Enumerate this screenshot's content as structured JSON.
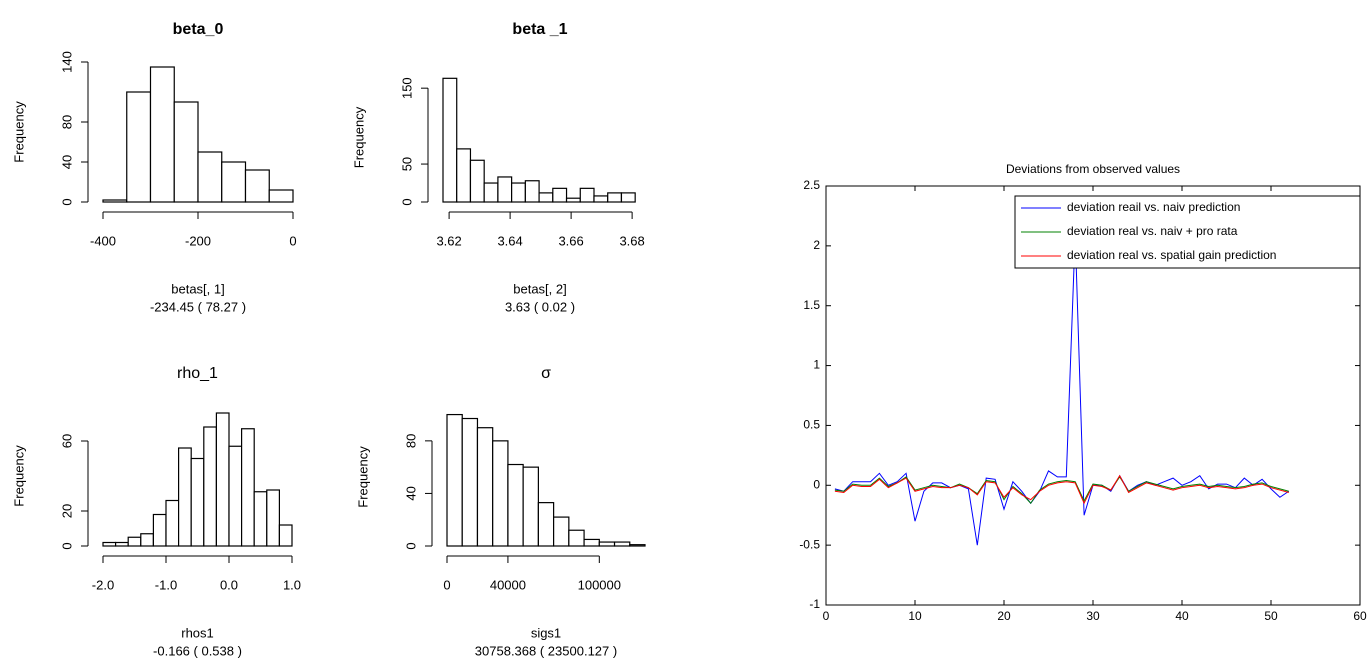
{
  "chart_data": [
    {
      "type": "histogram",
      "title": "beta_0",
      "ylabel": "Frequency",
      "xlabel": "betas[, 1]",
      "note": "-234.45 ( 78.27 )",
      "bins": [
        -400,
        -350,
        -300,
        -250,
        -200,
        -150,
        -100,
        -50,
        0
      ],
      "values": [
        2,
        110,
        135,
        100,
        50,
        40,
        32,
        12
      ],
      "color": "#ffffff",
      "xlim": [
        -400,
        0
      ],
      "xticks": [
        -400,
        -200,
        0
      ],
      "ylim": [
        0,
        140
      ],
      "yticks": [
        0,
        40,
        80,
        140
      ]
    },
    {
      "type": "histogram",
      "title": "beta _1",
      "ylabel": "Frequency",
      "xlabel": "betas[, 2]",
      "note": "3.63 ( 0.02 )",
      "bins": [
        3.618,
        3.6225,
        3.627,
        3.6315,
        3.636,
        3.6405,
        3.645,
        3.6495,
        3.654,
        3.6585,
        3.663,
        3.6675,
        3.672,
        3.6765,
        3.681
      ],
      "values": [
        163,
        70,
        55,
        25,
        33,
        25,
        28,
        12,
        18,
        5,
        18,
        8,
        12,
        12
      ],
      "color": "#ffffff",
      "xlim": [
        3.618,
        3.6816
      ],
      "xticks": [
        3.62,
        3.64,
        3.66,
        3.68
      ],
      "ylim": [
        0,
        170
      ],
      "yticks": [
        0,
        50,
        150
      ]
    },
    {
      "type": "histogram",
      "title": "rho_1",
      "ylabel": "Frequency",
      "xlabel": "rhos1",
      "note": "-0.166 ( 0.538 )",
      "bins": [
        -2,
        -1.8,
        -1.6,
        -1.4,
        -1.2,
        -1,
        -0.8,
        -0.6,
        -0.4,
        -0.2,
        0,
        0.2,
        0.4,
        0.6,
        0.8,
        1
      ],
      "values": [
        2,
        2,
        5,
        7,
        18,
        26,
        56,
        50,
        68,
        76,
        57,
        67,
        31,
        32,
        12
      ],
      "color": "#ffffff",
      "xlim": [
        -2,
        1
      ],
      "xticks": [
        {
          "value": -2,
          "label": "-2.0"
        },
        {
          "value": -1,
          "label": "-1.0"
        },
        {
          "value": 0,
          "label": "0.0"
        },
        {
          "value": 1,
          "label": "1.0"
        }
      ],
      "ylim": [
        0,
        80
      ],
      "yticks": [
        0,
        20,
        60
      ]
    },
    {
      "type": "histogram",
      "title": "σ",
      "ylabel": "Frequency",
      "xlabel": "sigs1",
      "note": "30758.368 ( 23500.127 )",
      "bins": [
        0,
        10000,
        20000,
        30000,
        40000,
        50000,
        60000,
        70000,
        80000,
        90000,
        100000,
        110000,
        120000,
        130000
      ],
      "values": [
        100,
        97,
        90,
        80,
        62,
        60,
        33,
        22,
        12,
        5,
        3,
        3,
        1
      ],
      "color": "#ffffff",
      "xlim": [
        0,
        130000
      ],
      "xticks": [
        0,
        40000,
        100000
      ],
      "ylim": [
        0,
        105
      ],
      "yticks": [
        0,
        40,
        80
      ]
    },
    {
      "type": "line",
      "title": "Deviations from observed values",
      "x": [
        1,
        2,
        3,
        4,
        5,
        6,
        7,
        8,
        9,
        10,
        11,
        12,
        13,
        14,
        15,
        16,
        17,
        18,
        19,
        20,
        21,
        22,
        23,
        24,
        25,
        26,
        27,
        28,
        29,
        30,
        31,
        32,
        33,
        34,
        35,
        36,
        37,
        38,
        39,
        40,
        41,
        42,
        43,
        44,
        45,
        46,
        47,
        48,
        49,
        50,
        51,
        52
      ],
      "series": [
        {
          "name": "deviation reail vs. naiv prediction",
          "color": "#0000ff",
          "values": [
            -0.03,
            -0.05,
            0.03,
            0.03,
            0.03,
            0.1,
            0.0,
            0.03,
            0.1,
            -0.3,
            -0.05,
            0.02,
            0.02,
            -0.02,
            0.0,
            -0.03,
            -0.5,
            0.06,
            0.05,
            -0.2,
            0.03,
            -0.05,
            -0.15,
            -0.05,
            0.12,
            0.07,
            0.07,
            2.1,
            -0.25,
            0.0,
            0.0,
            -0.05,
            0.08,
            -0.05,
            0.0,
            0.03,
            0.0,
            0.03,
            0.06,
            0.0,
            0.03,
            0.08,
            -0.03,
            0.01,
            0.01,
            -0.02,
            0.06,
            0.0,
            0.05,
            -0.03,
            -0.1,
            -0.05
          ]
        },
        {
          "name": "deviation real vs. naiv + pro rata",
          "color": "#008000",
          "values": [
            -0.04,
            -0.05,
            0.01,
            0.0,
            0.0,
            0.06,
            -0.01,
            0.02,
            0.07,
            -0.04,
            -0.02,
            0.0,
            -0.01,
            -0.02,
            0.01,
            -0.02,
            -0.07,
            0.04,
            0.03,
            -0.12,
            -0.01,
            -0.07,
            -0.15,
            -0.04,
            0.01,
            0.03,
            0.04,
            0.03,
            -0.13,
            0.01,
            0.0,
            -0.04,
            0.07,
            -0.05,
            -0.01,
            0.03,
            0.01,
            -0.01,
            -0.03,
            -0.01,
            0.0,
            0.01,
            -0.01,
            0.0,
            -0.01,
            -0.02,
            -0.01,
            0.01,
            0.02,
            -0.01,
            -0.03,
            -0.05
          ]
        },
        {
          "name": "deviation real vs. spatial gain prediction",
          "color": "#ff0000",
          "values": [
            -0.05,
            -0.06,
            0.0,
            -0.01,
            -0.01,
            0.05,
            -0.02,
            0.02,
            0.06,
            -0.05,
            -0.03,
            -0.01,
            -0.02,
            -0.02,
            0.0,
            -0.02,
            -0.08,
            0.03,
            0.02,
            -0.1,
            -0.02,
            -0.08,
            -0.12,
            -0.05,
            0.0,
            0.02,
            0.03,
            0.02,
            -0.15,
            0.0,
            -0.01,
            -0.04,
            0.08,
            -0.06,
            -0.02,
            0.02,
            0.0,
            -0.02,
            -0.04,
            -0.02,
            -0.01,
            0.0,
            -0.02,
            -0.01,
            -0.02,
            -0.03,
            -0.02,
            0.0,
            0.01,
            -0.02,
            -0.04,
            -0.06
          ]
        }
      ],
      "xlim": [
        0,
        60
      ],
      "xticks": [
        0,
        10,
        20,
        30,
        40,
        50,
        60
      ],
      "ylim": [
        -1,
        2.5
      ],
      "yticks": [
        -1,
        -0.5,
        0,
        0.5,
        1,
        1.5,
        2,
        2.5
      ],
      "legend": "upper right"
    }
  ]
}
